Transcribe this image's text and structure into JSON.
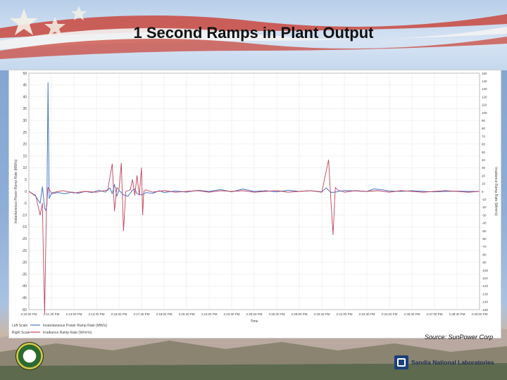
{
  "slide": {
    "title": "1 Second Ramps in Plant Output",
    "source": "Source: SunPower Corp",
    "footer_logo_text": "Sandia National Laboratories"
  },
  "colors": {
    "series_left": "#4a78c8",
    "series_right": "#c0435c",
    "gridline": "#e6e6e6",
    "axis_text": "#444444"
  },
  "chart_data": {
    "type": "line",
    "title": "",
    "xlabel": "Time",
    "ylabel_left": "Instantaneous Power Ramp Rate (MW/s)",
    "ylabel_right": "Irradiance Ramp Rate (W/m²/s)",
    "x_ticks": [
      "2:10:00 PM",
      "2:11:30 PM",
      "2:13:00 PM",
      "2:14:30 PM",
      "2:16:00 PM",
      "2:17:30 PM",
      "2:19:00 PM",
      "2:20:30 PM",
      "2:22:00 PM",
      "2:23:30 PM",
      "2:25:00 PM",
      "2:26:30 PM",
      "2:28:00 PM",
      "2:29:30 PM",
      "2:31:00 PM",
      "2:32:30 PM",
      "2:34:00 PM",
      "2:35:30 PM",
      "2:37:00 PM",
      "2:38:30 PM",
      "2:40:00 PM"
    ],
    "xlim": [
      0,
      20
    ],
    "left_axis": {
      "ticks": [
        50,
        45,
        40,
        35,
        30,
        25,
        20,
        15,
        10,
        5,
        0,
        -5,
        -10,
        -15,
        -20,
        -25,
        -30,
        -35,
        -40,
        -45,
        -50
      ],
      "ylim": [
        -50,
        50
      ]
    },
    "right_axis": {
      "ticks": [
        150,
        140,
        130,
        120,
        110,
        100,
        90,
        80,
        70,
        60,
        50,
        40,
        30,
        20,
        10,
        0,
        -10,
        -20,
        -30,
        -40,
        -50,
        -60,
        -70,
        -80,
        -90,
        -100,
        -110,
        -120,
        -130,
        -140,
        -150
      ],
      "ylim": [
        -150,
        150
      ]
    },
    "legend": {
      "position": "bottom-left",
      "left_scale_label": "Left Scale",
      "right_scale_label": "Right Scale",
      "left_series_name": "Instantaneous Power Ramp Rate (MW/s)",
      "right_series_name": "Irradiance Ramp Rate (W/m²/s)"
    },
    "series": [
      {
        "name": "Instantaneous Power Ramp Rate (MW/s)",
        "axis": "left",
        "color": "#4a78c8",
        "points": [
          [
            0,
            0
          ],
          [
            0.3,
            -2
          ],
          [
            0.5,
            -5
          ],
          [
            0.6,
            2
          ],
          [
            0.7,
            -7
          ],
          [
            0.75,
            -8
          ],
          [
            0.8,
            -6
          ],
          [
            0.85,
            46
          ],
          [
            0.9,
            -3
          ],
          [
            1.0,
            -1
          ],
          [
            1.3,
            -0.5
          ],
          [
            1.6,
            -1
          ],
          [
            1.9,
            -0.3
          ],
          [
            2.2,
            -0.8
          ],
          [
            2.5,
            0
          ],
          [
            2.8,
            -0.5
          ],
          [
            3.1,
            0.5
          ],
          [
            3.4,
            -0.3
          ],
          [
            3.6,
            1.5
          ],
          [
            3.7,
            -1
          ],
          [
            3.8,
            3
          ],
          [
            3.9,
            -2
          ],
          [
            4.0,
            0.5
          ],
          [
            4.2,
            -1.5
          ],
          [
            4.4,
            -2
          ],
          [
            4.6,
            0.5
          ],
          [
            4.7,
            1
          ],
          [
            4.8,
            -1
          ],
          [
            5.0,
            -1.5
          ],
          [
            5.2,
            -0.5
          ],
          [
            5.5,
            -0.8
          ],
          [
            5.8,
            0.3
          ],
          [
            6.0,
            -0.5
          ],
          [
            6.5,
            0.2
          ],
          [
            7.0,
            -0.3
          ],
          [
            7.5,
            0.5
          ],
          [
            8.0,
            0
          ],
          [
            8.5,
            0.8
          ],
          [
            9.0,
            -0.2
          ],
          [
            9.5,
            1
          ],
          [
            10.0,
            0
          ],
          [
            10.5,
            0.3
          ],
          [
            11.0,
            -0.2
          ],
          [
            11.5,
            0.5
          ],
          [
            12.0,
            0
          ],
          [
            12.5,
            0.3
          ],
          [
            13.0,
            -0.2
          ],
          [
            13.2,
            1.5
          ],
          [
            13.4,
            -0.5
          ],
          [
            13.6,
            -0.3
          ],
          [
            14.0,
            0.4
          ],
          [
            14.5,
            0.2
          ],
          [
            15.0,
            0
          ],
          [
            15.3,
            1
          ],
          [
            15.6,
            0.8
          ],
          [
            16.0,
            0.2
          ],
          [
            16.5,
            0
          ],
          [
            17.0,
            0.3
          ],
          [
            17.5,
            0
          ],
          [
            18.0,
            -0.2
          ],
          [
            18.5,
            0
          ],
          [
            19.0,
            0.1
          ],
          [
            19.5,
            0
          ],
          [
            20,
            0
          ]
        ]
      },
      {
        "name": "Irradiance Ramp Rate (W/m²/s)",
        "axis": "right",
        "color": "#c0435c",
        "points": [
          [
            0,
            0
          ],
          [
            0.3,
            -5
          ],
          [
            0.5,
            -30
          ],
          [
            0.6,
            -15
          ],
          [
            0.65,
            -90
          ],
          [
            0.7,
            -155
          ],
          [
            0.78,
            -20
          ],
          [
            0.85,
            5
          ],
          [
            1.0,
            -2
          ],
          [
            1.5,
            1
          ],
          [
            2.0,
            -2
          ],
          [
            2.5,
            0
          ],
          [
            3.0,
            -1
          ],
          [
            3.5,
            2
          ],
          [
            3.7,
            35
          ],
          [
            3.8,
            -25
          ],
          [
            3.9,
            5
          ],
          [
            4.0,
            2
          ],
          [
            4.1,
            36
          ],
          [
            4.2,
            -50
          ],
          [
            4.3,
            0
          ],
          [
            4.5,
            2
          ],
          [
            4.6,
            15
          ],
          [
            4.7,
            -5
          ],
          [
            4.8,
            20
          ],
          [
            4.9,
            -5
          ],
          [
            5.0,
            30
          ],
          [
            5.05,
            -30
          ],
          [
            5.1,
            0
          ],
          [
            5.2,
            2
          ],
          [
            5.5,
            -1
          ],
          [
            6.0,
            1
          ],
          [
            6.5,
            -1
          ],
          [
            7.0,
            0
          ],
          [
            7.5,
            1
          ],
          [
            8.0,
            -1
          ],
          [
            8.5,
            1
          ],
          [
            9.0,
            0
          ],
          [
            9.5,
            1
          ],
          [
            10.0,
            -1
          ],
          [
            10.5,
            0
          ],
          [
            11.0,
            1
          ],
          [
            11.5,
            -1
          ],
          [
            12.0,
            0
          ],
          [
            12.5,
            1
          ],
          [
            13.0,
            -1
          ],
          [
            13.3,
            40
          ],
          [
            13.4,
            -10
          ],
          [
            13.5,
            -55
          ],
          [
            13.6,
            5
          ],
          [
            13.7,
            2
          ],
          [
            14.0,
            -1
          ],
          [
            14.5,
            1
          ],
          [
            15.0,
            0
          ],
          [
            15.5,
            1
          ],
          [
            16.0,
            -1
          ],
          [
            16.5,
            1
          ],
          [
            17.0,
            0
          ],
          [
            17.5,
            -1
          ],
          [
            18.0,
            0
          ],
          [
            18.5,
            1
          ],
          [
            19.0,
            0
          ],
          [
            19.5,
            -1
          ],
          [
            20,
            0
          ]
        ]
      }
    ],
    "grid": true
  }
}
